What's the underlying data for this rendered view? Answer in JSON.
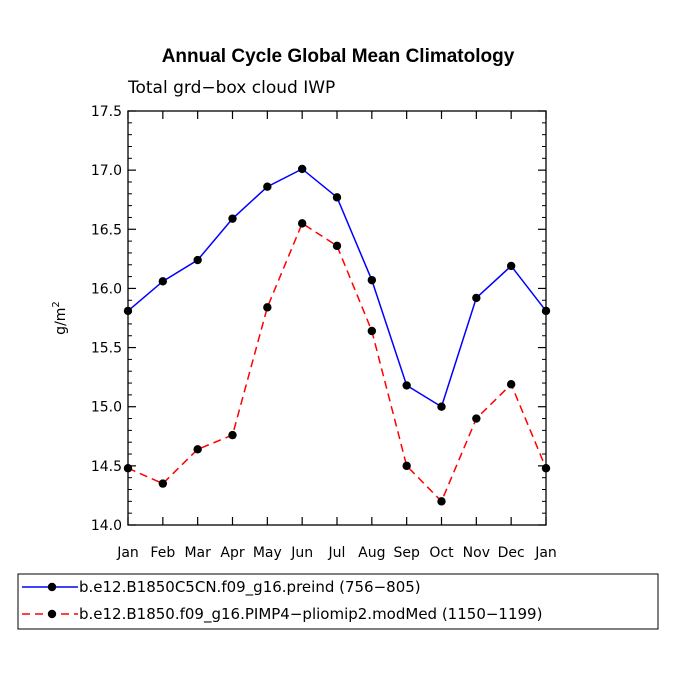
{
  "chart_data": {
    "type": "line",
    "title": "Annual Cycle Global Mean Climatology",
    "subtitle": "Total grd−box cloud IWP",
    "ylabel_base": "g/m",
    "ylabel_exp": "2",
    "ylim": [
      14.0,
      17.5
    ],
    "yticks": [
      "14.0",
      "14.5",
      "15.0",
      "15.5",
      "16.0",
      "16.5",
      "17.0",
      "17.5"
    ],
    "categories": [
      "Jan",
      "Feb",
      "Mar",
      "Apr",
      "May",
      "Jun",
      "Jul",
      "Aug",
      "Sep",
      "Oct",
      "Nov",
      "Dec",
      "Jan"
    ],
    "series": [
      {
        "name": "b.e12.B1850C5CN.f09_g16.preind (756−805)",
        "color": "#0000ff",
        "dash": "solid",
        "values": [
          15.81,
          16.06,
          16.24,
          16.59,
          16.86,
          17.01,
          16.77,
          16.07,
          15.18,
          15.0,
          15.92,
          16.19,
          15.81
        ]
      },
      {
        "name": "b.e12.B1850.f09_g16.PIMP4−pliomip2.modMed (1150−1199)",
        "color": "#ff0000",
        "dash": "dashed",
        "values": [
          14.48,
          14.35,
          14.64,
          14.76,
          15.84,
          16.55,
          16.36,
          15.64,
          14.5,
          14.2,
          14.9,
          15.19,
          14.48
        ]
      }
    ]
  }
}
